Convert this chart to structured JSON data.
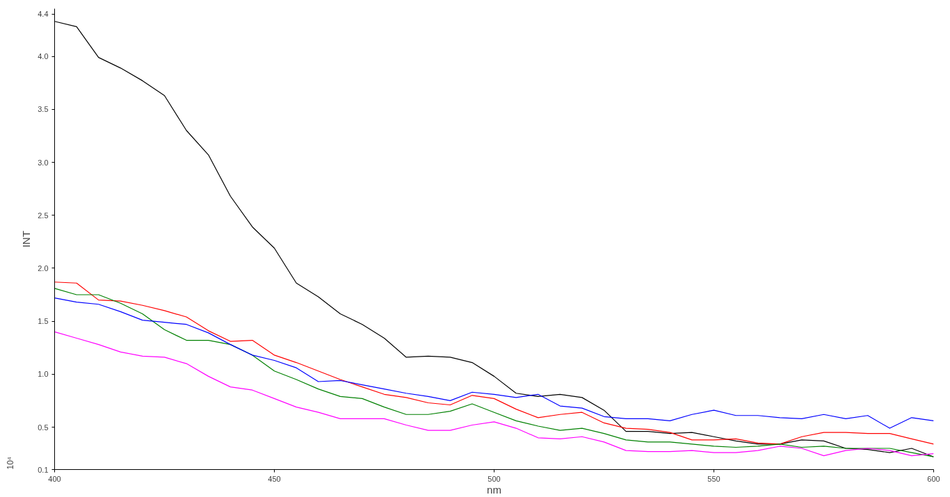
{
  "chart_data": {
    "type": "line",
    "xlabel": "nm",
    "ylabel": "INT",
    "annotations": [
      "10⁴"
    ],
    "x": [
      400,
      405,
      410,
      415,
      420,
      425,
      430,
      435,
      440,
      445,
      450,
      455,
      460,
      465,
      470,
      475,
      480,
      485,
      490,
      495,
      500,
      505,
      510,
      515,
      520,
      525,
      530,
      535,
      540,
      545,
      550,
      555,
      560,
      565,
      570,
      575,
      580,
      585,
      590,
      595,
      600
    ],
    "series": [
      {
        "color": "#000000",
        "values": [
          4.33,
          4.28,
          3.99,
          3.89,
          3.77,
          3.63,
          3.3,
          3.07,
          2.68,
          2.39,
          2.19,
          1.86,
          1.73,
          1.57,
          1.47,
          1.34,
          1.16,
          1.17,
          1.16,
          1.11,
          0.98,
          0.82,
          0.79,
          0.81,
          0.78,
          0.66,
          0.46,
          0.46,
          0.44,
          0.45,
          0.41,
          0.37,
          0.34,
          0.34,
          0.38,
          0.37,
          0.3,
          0.29,
          0.26,
          0.3,
          0.22
        ]
      },
      {
        "color": "#ff0000",
        "values": [
          1.87,
          1.86,
          1.7,
          1.69,
          1.65,
          1.6,
          1.54,
          1.41,
          1.31,
          1.32,
          1.18,
          1.11,
          1.03,
          0.95,
          0.88,
          0.81,
          0.78,
          0.73,
          0.71,
          0.8,
          0.77,
          0.67,
          0.59,
          0.62,
          0.64,
          0.54,
          0.49,
          0.48,
          0.45,
          0.38,
          0.38,
          0.39,
          0.35,
          0.34,
          0.41,
          0.45,
          0.45,
          0.44,
          0.44,
          0.39,
          0.34
        ]
      },
      {
        "color": "#008000",
        "values": [
          1.81,
          1.75,
          1.75,
          1.67,
          1.57,
          1.42,
          1.32,
          1.32,
          1.28,
          1.18,
          1.03,
          0.95,
          0.86,
          0.79,
          0.77,
          0.69,
          0.62,
          0.62,
          0.65,
          0.72,
          0.64,
          0.56,
          0.51,
          0.47,
          0.49,
          0.44,
          0.38,
          0.36,
          0.36,
          0.34,
          0.32,
          0.31,
          0.32,
          0.34,
          0.31,
          0.32,
          0.3,
          0.3,
          0.3,
          0.26,
          0.22
        ]
      },
      {
        "color": "#0000ff",
        "values": [
          1.72,
          1.68,
          1.66,
          1.59,
          1.51,
          1.49,
          1.47,
          1.39,
          1.28,
          1.18,
          1.13,
          1.06,
          0.93,
          0.94,
          0.9,
          0.86,
          0.82,
          0.79,
          0.75,
          0.83,
          0.81,
          0.78,
          0.81,
          0.7,
          0.68,
          0.6,
          0.58,
          0.58,
          0.56,
          0.62,
          0.66,
          0.61,
          0.61,
          0.59,
          0.58,
          0.62,
          0.58,
          0.61,
          0.49,
          0.59,
          0.56
        ]
      },
      {
        "color": "#ff00ff",
        "values": [
          1.4,
          1.34,
          1.28,
          1.21,
          1.17,
          1.16,
          1.1,
          0.98,
          0.88,
          0.85,
          0.77,
          0.69,
          0.64,
          0.58,
          0.58,
          0.58,
          0.52,
          0.47,
          0.47,
          0.52,
          0.55,
          0.49,
          0.4,
          0.39,
          0.41,
          0.36,
          0.28,
          0.27,
          0.27,
          0.28,
          0.26,
          0.26,
          0.28,
          0.32,
          0.3,
          0.23,
          0.28,
          0.3,
          0.28,
          0.23,
          0.25
        ]
      }
    ],
    "xlim": [
      400,
      600
    ],
    "xticks": [
      400,
      450,
      500,
      550,
      600
    ],
    "ylim": [
      0.1,
      4.45
    ],
    "yticks": [
      0.1,
      0.5,
      {
        "value": 1,
        "label": "1.0"
      },
      1.5,
      {
        "value": 2,
        "label": "2.0"
      },
      2.5,
      {
        "value": 3,
        "label": "3.0"
      },
      3.5,
      {
        "value": 4,
        "label": "4.0"
      },
      4.4
    ],
    "grid": false,
    "line_style": "solid"
  }
}
